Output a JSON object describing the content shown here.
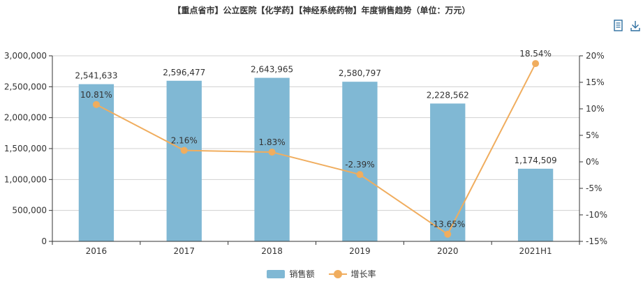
{
  "title": "【重点省市】公立医院【化学药】【神经系统药物】年度销售趋势（单位：万元）",
  "toolbar": {
    "data_view_icon": "document-icon",
    "download_icon": "download-icon"
  },
  "colors": {
    "bar": "#80b8d4",
    "line": "#f0ad5e",
    "grid": "#d0d0d0",
    "axis": "#333333"
  },
  "chart_data": {
    "type": "bar",
    "categories": [
      "2016",
      "2017",
      "2018",
      "2019",
      "2020",
      "2021H1"
    ],
    "series": [
      {
        "name": "销售额",
        "type": "bar",
        "axis": "left",
        "values": [
          2541633,
          2596477,
          2643965,
          2580797,
          2228562,
          1174509
        ],
        "labels": [
          "2,541,633",
          "2,596,477",
          "2,643,965",
          "2,580,797",
          "2,228,562",
          "1,174,509"
        ]
      },
      {
        "name": "增长率",
        "type": "line",
        "axis": "right",
        "values": [
          10.81,
          2.16,
          1.83,
          -2.39,
          -13.65,
          18.54
        ],
        "labels": [
          "10.81%",
          "2.16%",
          "1.83%",
          "-2.39%",
          "-13.65%",
          "18.54%"
        ]
      }
    ],
    "y_left": {
      "ylim": [
        0,
        3000000
      ],
      "ticks": [
        "0",
        "500,000",
        "1,000,000",
        "1,500,000",
        "2,000,000",
        "2,500,000",
        "3,000,000"
      ]
    },
    "y_right": {
      "ylim": [
        -15,
        20
      ],
      "ticks": [
        "-15%",
        "-10%",
        "-5%",
        "0%",
        "5%",
        "10%",
        "15%",
        "20%"
      ]
    },
    "grid": true,
    "legend_position": "bottom-center"
  }
}
